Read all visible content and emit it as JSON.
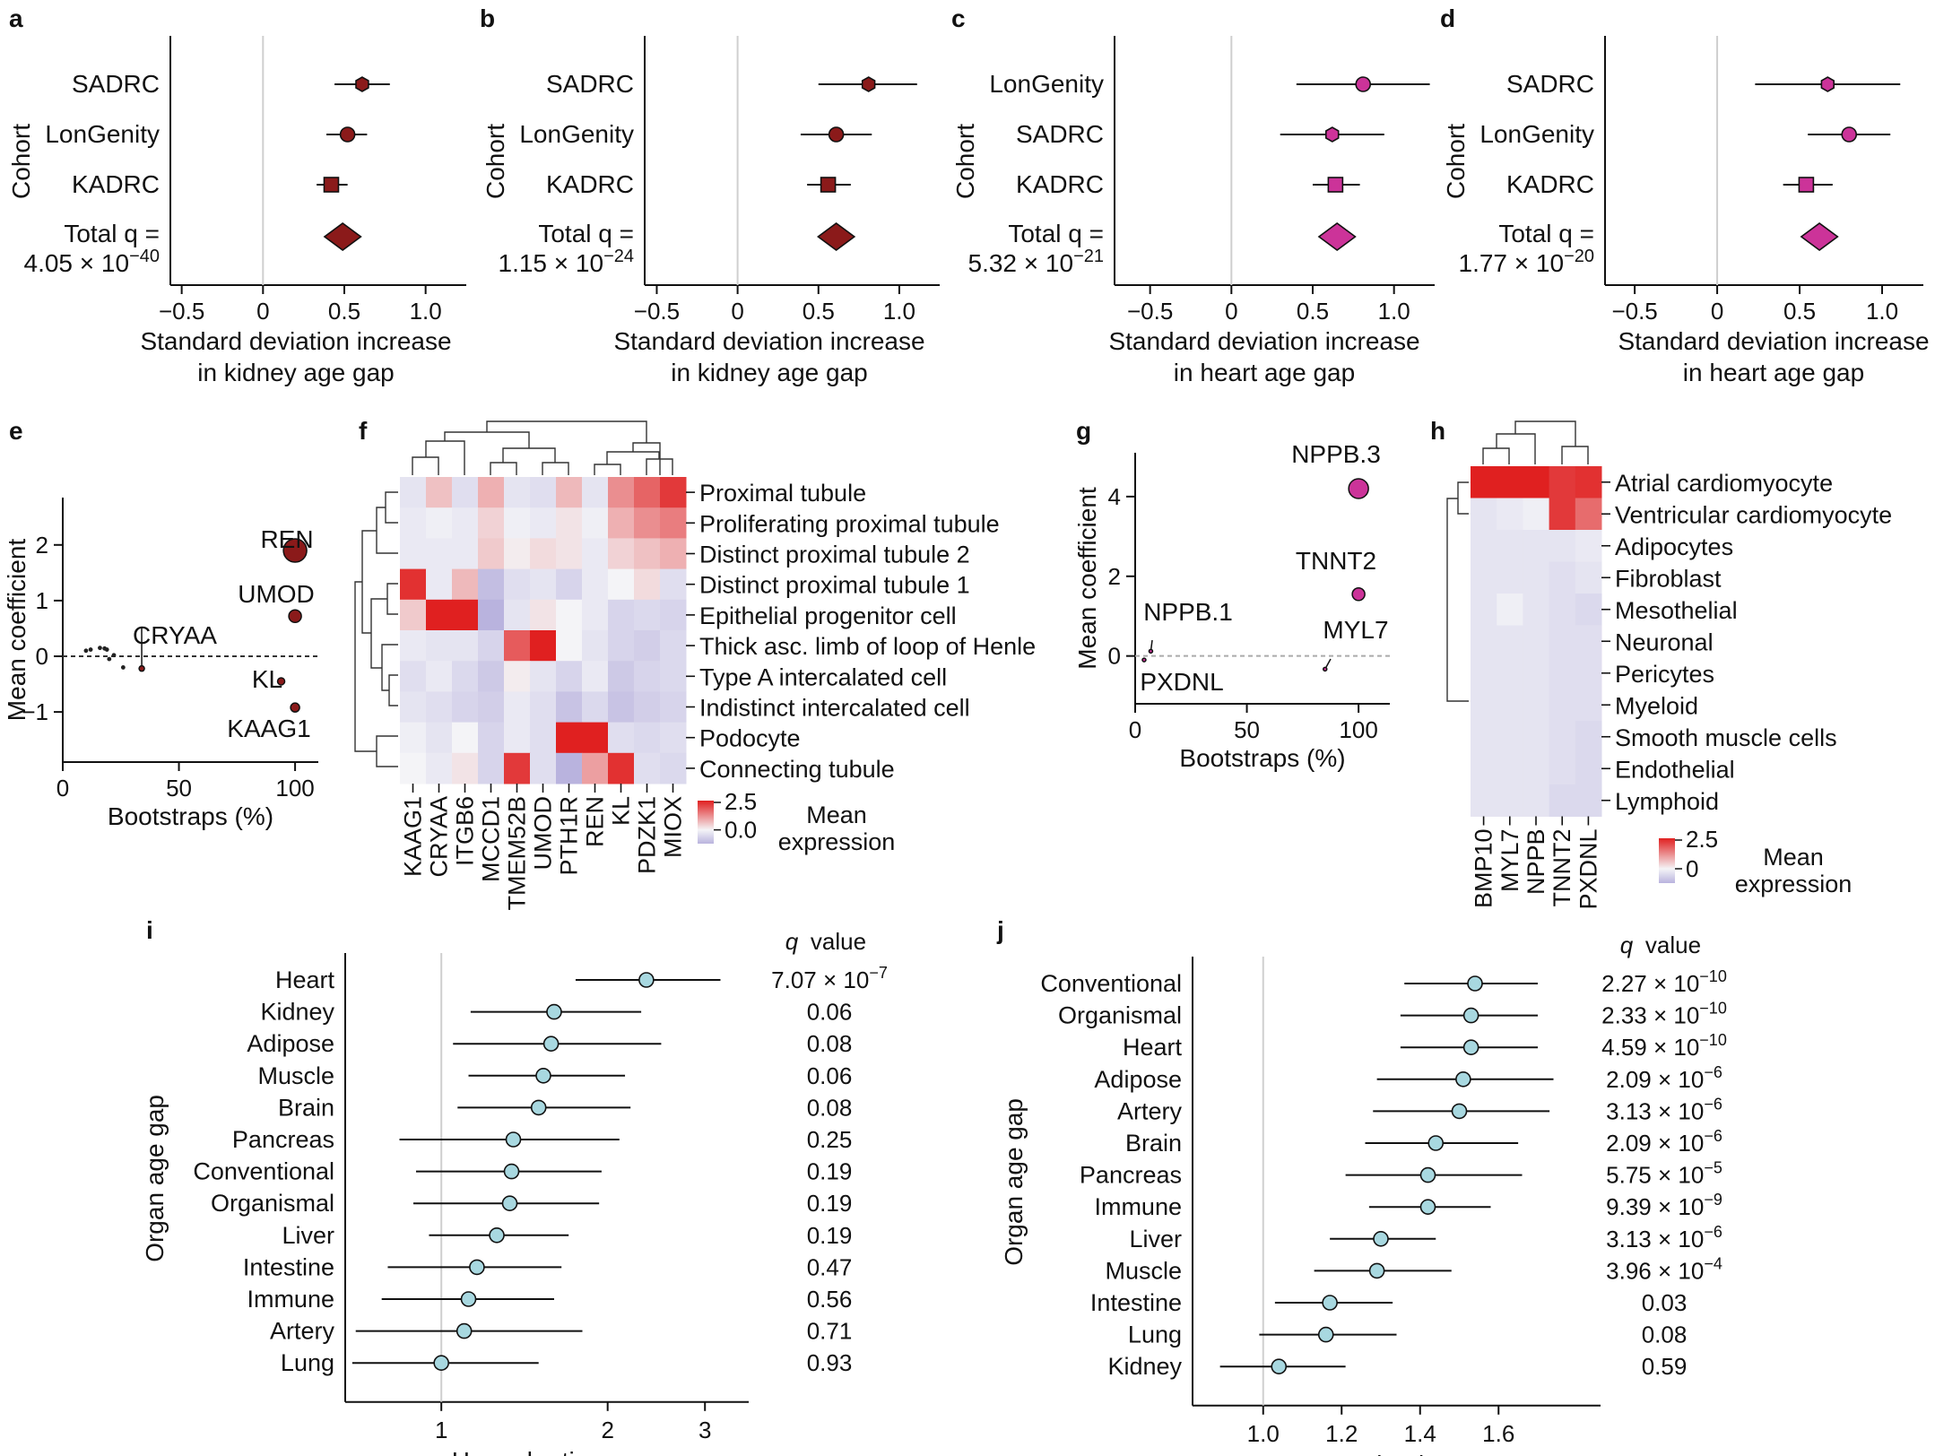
{
  "colors": {
    "kidney": "#8b1a1a",
    "heart": "#cc3399",
    "hr": "#a8d8e0",
    "hmLow": "#b9b3de",
    "hmMid": "#f4f4f7",
    "hmHigh": "#e02020"
  },
  "chart_data": [
    {
      "id": "a",
      "type": "forest",
      "ylabel": "Cohort",
      "xlabel": [
        "Standard deviation increase",
        "in kidney age gap"
      ],
      "xticks": [
        -0.5,
        0,
        0.5,
        1.0
      ],
      "xtick_labels": [
        "−0.5",
        "0",
        "0.5",
        "1.0"
      ],
      "xlim": [
        -0.68,
        1.25
      ],
      "color": "kidney",
      "rows": [
        {
          "label": "SADRC",
          "est": 0.61,
          "lo": 0.44,
          "hi": 0.78,
          "marker": "hexagon"
        },
        {
          "label": "LonGenity",
          "est": 0.52,
          "lo": 0.39,
          "hi": 0.64,
          "marker": "circle"
        },
        {
          "label": "KADRC",
          "est": 0.42,
          "lo": 0.33,
          "hi": 0.52,
          "marker": "square"
        }
      ],
      "total": {
        "est": 0.49,
        "label1": "Total q =",
        "label2": "4.05 × 10",
        "exp": "−40"
      }
    },
    {
      "id": "b",
      "type": "forest",
      "ylabel": "Cohort",
      "xlabel": [
        "Standard deviation increase",
        "in kidney age gap"
      ],
      "xticks": [
        -0.5,
        0,
        0.5,
        1.0
      ],
      "xtick_labels": [
        "−0.5",
        "0",
        "0.5",
        "1.0"
      ],
      "xlim": [
        -0.68,
        1.25
      ],
      "color": "kidney",
      "rows": [
        {
          "label": "SADRC",
          "est": 0.81,
          "lo": 0.5,
          "hi": 1.11,
          "marker": "hexagon"
        },
        {
          "label": "LonGenity",
          "est": 0.61,
          "lo": 0.39,
          "hi": 0.83,
          "marker": "circle"
        },
        {
          "label": "KADRC",
          "est": 0.56,
          "lo": 0.43,
          "hi": 0.7,
          "marker": "square"
        }
      ],
      "total": {
        "est": 0.61,
        "label1": "Total q =",
        "label2": "1.15 × 10",
        "exp": "−24"
      }
    },
    {
      "id": "c",
      "type": "forest",
      "ylabel": "Cohort",
      "xlabel": [
        "Standard deviation increase",
        "in heart age gap"
      ],
      "xticks": [
        -0.5,
        0,
        0.5,
        1.0
      ],
      "xtick_labels": [
        "−0.5",
        "0",
        "0.5",
        "1.0"
      ],
      "xlim": [
        -0.68,
        1.25
      ],
      "color": "heart",
      "rows": [
        {
          "label": "LonGenity",
          "est": 0.81,
          "lo": 0.4,
          "hi": 1.22,
          "marker": "circle"
        },
        {
          "label": "SADRC",
          "est": 0.62,
          "lo": 0.3,
          "hi": 0.94,
          "marker": "hexagon"
        },
        {
          "label": "KADRC",
          "est": 0.64,
          "lo": 0.5,
          "hi": 0.79,
          "marker": "square"
        }
      ],
      "total": {
        "est": 0.65,
        "label1": "Total q =",
        "label2": "5.32 × 10",
        "exp": "−21"
      }
    },
    {
      "id": "d",
      "type": "forest",
      "ylabel": "Cohort",
      "xlabel": [
        "Standard deviation increase",
        "in heart age gap"
      ],
      "xticks": [
        -0.5,
        0,
        0.5,
        1.0
      ],
      "xtick_labels": [
        "−0.5",
        "0",
        "0.5",
        "1.0"
      ],
      "xlim": [
        -0.68,
        1.25
      ],
      "color": "heart",
      "rows": [
        {
          "label": "SADRC",
          "est": 0.67,
          "lo": 0.23,
          "hi": 1.11,
          "marker": "hexagon"
        },
        {
          "label": "LonGenity",
          "est": 0.8,
          "lo": 0.55,
          "hi": 1.05,
          "marker": "circle"
        },
        {
          "label": "KADRC",
          "est": 0.54,
          "lo": 0.4,
          "hi": 0.7,
          "marker": "square"
        }
      ],
      "total": {
        "est": 0.62,
        "label1": "Total q =",
        "label2": "1.77 × 10",
        "exp": "−20"
      }
    },
    {
      "id": "e",
      "type": "scatter",
      "ylabel": "Mean coefficient",
      "xlabel": "Bootstraps (%)",
      "xticks": [
        0,
        50,
        100
      ],
      "yticks": [
        -1,
        0,
        1,
        2
      ],
      "xlim": [
        0,
        110
      ],
      "ylim": [
        -1.9,
        2.85
      ],
      "color": "kidney",
      "small_points": [
        [
          10,
          0.1
        ],
        [
          12,
          0.12
        ],
        [
          16,
          0.15
        ],
        [
          18,
          0.14
        ],
        [
          19,
          0.12
        ],
        [
          20,
          -0.05
        ],
        [
          22,
          0.02
        ],
        [
          26,
          -0.2
        ]
      ],
      "points": [
        {
          "label": "REN",
          "x": 100,
          "y": 1.9,
          "r": 13
        },
        {
          "label": "UMOD",
          "x": 100,
          "y": 0.72,
          "r": 7
        },
        {
          "label": "CRYAA",
          "x": 34,
          "y": -0.22,
          "r": 3
        },
        {
          "label": "KL",
          "x": 94,
          "y": -0.45,
          "r": 4
        },
        {
          "label": "KAAG1",
          "x": 100,
          "y": -0.92,
          "r": 5
        }
      ]
    },
    {
      "id": "f",
      "type": "heatmap",
      "columns": [
        "KAAG1",
        "CRYAA",
        "ITGB6",
        "MCCD1",
        "TMEM52B",
        "UMOD",
        "PTH1R",
        "REN",
        "KL",
        "PDZK1",
        "MIOX"
      ],
      "rows": [
        "Proximal tubule",
        "Proliferating proximal tubule",
        "Distinct proximal tubule 2",
        "Distinct proximal tubule 1",
        "Epithelial progenitor cell",
        "Thick asc. limb of loop of Henle",
        "Type A intercalated cell",
        "Indistinct intercalated cell",
        "Podocyte",
        "Connecting tubule"
      ],
      "values": [
        [
          -0.3,
          0.6,
          -0.4,
          0.8,
          -0.3,
          -0.4,
          0.7,
          -0.3,
          1.2,
          1.7,
          2.2
        ],
        [
          -0.2,
          -0.1,
          -0.2,
          0.4,
          -0.1,
          -0.2,
          0.2,
          -0.1,
          0.8,
          1.2,
          1.4
        ],
        [
          -0.2,
          -0.2,
          -0.2,
          0.5,
          0.1,
          0.3,
          0.2,
          -0.2,
          0.4,
          0.6,
          0.8
        ],
        [
          2.3,
          -0.2,
          0.7,
          -1.0,
          -0.4,
          -0.3,
          -0.6,
          -0.2,
          0.0,
          0.3,
          -0.4
        ],
        [
          0.5,
          2.5,
          2.5,
          -1.2,
          -0.3,
          0.2,
          0.0,
          -0.2,
          -0.6,
          -0.5,
          -0.6
        ],
        [
          -0.2,
          -0.3,
          -0.3,
          -0.6,
          1.8,
          2.5,
          0.0,
          -0.3,
          -0.6,
          -0.7,
          -0.5
        ],
        [
          -0.4,
          -0.2,
          -0.5,
          -0.8,
          0.1,
          -0.3,
          -0.6,
          -0.2,
          -0.8,
          -0.6,
          -0.5
        ],
        [
          -0.3,
          -0.4,
          -0.6,
          -0.7,
          -0.2,
          -0.4,
          -0.9,
          -0.5,
          -0.9,
          -0.7,
          -0.6
        ],
        [
          -0.1,
          -0.3,
          0.0,
          -0.6,
          -0.2,
          -0.4,
          2.5,
          2.5,
          -0.4,
          -0.5,
          -0.4
        ],
        [
          0.0,
          -0.2,
          0.2,
          -0.6,
          2.2,
          -0.4,
          -1.2,
          1.0,
          2.3,
          -0.4,
          -0.5
        ]
      ],
      "legend": {
        "title1": "Mean",
        "title2": "expression",
        "max": 2.5,
        "max_label": "2.5",
        "mid_label": "0.0"
      }
    },
    {
      "id": "g",
      "type": "scatter",
      "ylabel": "Mean coefficient",
      "xlabel": "Bootstraps (%)",
      "xticks": [
        0,
        50,
        100
      ],
      "yticks": [
        0,
        2,
        4
      ],
      "xlim": [
        0,
        114
      ],
      "ylim": [
        -1.2,
        5.1
      ],
      "color": "heart",
      "points": [
        {
          "label": "NPPB.3",
          "x": 100,
          "y": 4.2,
          "r": 11
        },
        {
          "label": "TNNT2",
          "x": 100,
          "y": 1.55,
          "r": 7
        },
        {
          "label": "NPPB.1",
          "x": 7,
          "y": 0.12,
          "r": 2
        },
        {
          "label": "MYL7",
          "x": 85,
          "y": -0.33,
          "r": 2
        },
        {
          "label": "PXDNL",
          "x": 4,
          "y": -0.1,
          "r": 2
        }
      ]
    },
    {
      "id": "h",
      "type": "heatmap",
      "columns": [
        "BMP10",
        "MYL7",
        "NPPB",
        "TNNT2",
        "PXDNL"
      ],
      "rows": [
        "Atrial cardiomyocyte",
        "Ventricular cardiomyocyte",
        "Adipocytes",
        "Fibroblast",
        "Mesothelial",
        "Neuronal",
        "Pericytes",
        "Myeloid",
        "Smooth muscle cells",
        "Endothelial",
        "Lymphoid"
      ],
      "values": [
        [
          2.5,
          2.5,
          2.5,
          2.2,
          2.3
        ],
        [
          -0.3,
          -0.2,
          -0.1,
          2.2,
          1.6
        ],
        [
          -0.3,
          -0.3,
          -0.3,
          -0.3,
          -0.2
        ],
        [
          -0.3,
          -0.3,
          -0.3,
          -0.4,
          -0.3
        ],
        [
          -0.3,
          -0.1,
          -0.3,
          -0.4,
          -0.5
        ],
        [
          -0.3,
          -0.3,
          -0.3,
          -0.4,
          -0.4
        ],
        [
          -0.3,
          -0.3,
          -0.3,
          -0.4,
          -0.4
        ],
        [
          -0.3,
          -0.3,
          -0.3,
          -0.4,
          -0.4
        ],
        [
          -0.3,
          -0.3,
          -0.3,
          -0.4,
          -0.5
        ],
        [
          -0.3,
          -0.3,
          -0.3,
          -0.4,
          -0.5
        ],
        [
          -0.3,
          -0.3,
          -0.3,
          -0.5,
          -0.5
        ]
      ],
      "legend": {
        "title1": "Mean",
        "title2": "expression",
        "max": 2.5,
        "max_label": "2.5",
        "mid_label": "0"
      }
    },
    {
      "id": "i",
      "type": "forest-hr",
      "ylabel": "Organ age gap",
      "xlabel": "Hazard ratio",
      "scale": "log",
      "xticks": [
        1,
        2,
        3
      ],
      "xtick_labels": [
        "1",
        "2",
        "3"
      ],
      "xlim": [
        0.67,
        3.6
      ],
      "qheader": "q value",
      "rows": [
        {
          "label": "Heart",
          "est": 2.35,
          "lo": 1.75,
          "hi": 3.2,
          "q": "7.07 × 10",
          "qexp": "−7"
        },
        {
          "label": "Kidney",
          "est": 1.6,
          "lo": 1.13,
          "hi": 2.3,
          "q": "0.06"
        },
        {
          "label": "Adipose",
          "est": 1.58,
          "lo": 1.05,
          "hi": 2.5,
          "q": "0.08"
        },
        {
          "label": "Muscle",
          "est": 1.53,
          "lo": 1.12,
          "hi": 2.15,
          "q": "0.06"
        },
        {
          "label": "Brain",
          "est": 1.5,
          "lo": 1.07,
          "hi": 2.2,
          "q": "0.08"
        },
        {
          "label": "Pancreas",
          "est": 1.35,
          "lo": 0.84,
          "hi": 2.1,
          "q": "0.25"
        },
        {
          "label": "Conventional",
          "est": 1.34,
          "lo": 0.9,
          "hi": 1.95,
          "q": "0.19"
        },
        {
          "label": "Organismal",
          "est": 1.33,
          "lo": 0.89,
          "hi": 1.93,
          "q": "0.19"
        },
        {
          "label": "Liver",
          "est": 1.26,
          "lo": 0.95,
          "hi": 1.7,
          "q": "0.19"
        },
        {
          "label": "Intestine",
          "est": 1.16,
          "lo": 0.8,
          "hi": 1.65,
          "q": "0.47"
        },
        {
          "label": "Immune",
          "est": 1.12,
          "lo": 0.78,
          "hi": 1.6,
          "q": "0.56"
        },
        {
          "label": "Artery",
          "est": 1.1,
          "lo": 0.7,
          "hi": 1.8,
          "q": "0.71"
        },
        {
          "label": "Lung",
          "est": 1.0,
          "lo": 0.69,
          "hi": 1.5,
          "q": "0.93"
        }
      ]
    },
    {
      "id": "j",
      "type": "forest-hr",
      "ylabel": "Organ age gap",
      "xlabel": "Hazard ratio",
      "scale": "linear",
      "xticks": [
        1.0,
        1.2,
        1.4,
        1.6
      ],
      "xtick_labels": [
        "1.0",
        "1.2",
        "1.4",
        "1.6"
      ],
      "xlim": [
        0.82,
        1.86
      ],
      "qheader": "q value",
      "rows": [
        {
          "label": "Conventional",
          "est": 1.54,
          "lo": 1.36,
          "hi": 1.7,
          "q": "2.27 × 10",
          "qexp": "−10"
        },
        {
          "label": "Organismal",
          "est": 1.53,
          "lo": 1.35,
          "hi": 1.7,
          "q": "2.33 × 10",
          "qexp": "−10"
        },
        {
          "label": "Heart",
          "est": 1.53,
          "lo": 1.35,
          "hi": 1.7,
          "q": "4.59 × 10",
          "qexp": "−10"
        },
        {
          "label": "Adipose",
          "est": 1.51,
          "lo": 1.29,
          "hi": 1.74,
          "q": "2.09 × 10",
          "qexp": "−6"
        },
        {
          "label": "Artery",
          "est": 1.5,
          "lo": 1.28,
          "hi": 1.73,
          "q": "3.13 × 10",
          "qexp": "−6"
        },
        {
          "label": "Brain",
          "est": 1.44,
          "lo": 1.26,
          "hi": 1.65,
          "q": "2.09 × 10",
          "qexp": "−6"
        },
        {
          "label": "Pancreas",
          "est": 1.42,
          "lo": 1.21,
          "hi": 1.66,
          "q": "5.75 × 10",
          "qexp": "−5"
        },
        {
          "label": "Immune",
          "est": 1.42,
          "lo": 1.27,
          "hi": 1.58,
          "q": "9.39 × 10",
          "qexp": "−9"
        },
        {
          "label": "Liver",
          "est": 1.3,
          "lo": 1.17,
          "hi": 1.44,
          "q": "3.13 × 10",
          "qexp": "−6"
        },
        {
          "label": "Muscle",
          "est": 1.29,
          "lo": 1.13,
          "hi": 1.48,
          "q": "3.96 × 10",
          "qexp": "−4"
        },
        {
          "label": "Intestine",
          "est": 1.17,
          "lo": 1.03,
          "hi": 1.33,
          "q": "0.03"
        },
        {
          "label": "Lung",
          "est": 1.16,
          "lo": 0.99,
          "hi": 1.34,
          "q": "0.08"
        },
        {
          "label": "Kidney",
          "est": 1.04,
          "lo": 0.89,
          "hi": 1.21,
          "q": "0.59"
        }
      ]
    }
  ]
}
